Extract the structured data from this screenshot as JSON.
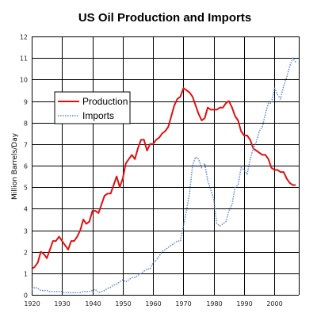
{
  "chart_data": {
    "type": "line",
    "title": "US Oil Production and Imports",
    "ylabel": "Million Barrels/Day",
    "xlabel": "",
    "xlim": [
      1920,
      2008
    ],
    "ylim": [
      0,
      12
    ],
    "grid": true,
    "legend_placement": "upper-left",
    "x_ticks": [
      1920,
      1930,
      1940,
      1950,
      1960,
      1970,
      1980,
      1990,
      2000
    ],
    "x_tick_labels": [
      "1920",
      "1930",
      "1940",
      "1950",
      "1960",
      "1970",
      "1980",
      "1990",
      "2000"
    ],
    "y_ticks": [
      0,
      1,
      2,
      3,
      4,
      5,
      6,
      7,
      8,
      9,
      10,
      11,
      12
    ],
    "y_tick_labels": [
      "0",
      "1",
      "2",
      "3",
      "4",
      "5",
      "6",
      "7",
      "8",
      "9",
      "10",
      "11",
      "12"
    ],
    "series": [
      {
        "name": "Production",
        "color": "#dd1111",
        "style": "solid",
        "x": [
          1920,
          1921,
          1922,
          1923,
          1924,
          1925,
          1926,
          1927,
          1928,
          1929,
          1930,
          1931,
          1932,
          1933,
          1934,
          1935,
          1936,
          1937,
          1938,
          1939,
          1940,
          1941,
          1942,
          1943,
          1944,
          1945,
          1946,
          1947,
          1948,
          1949,
          1950,
          1951,
          1952,
          1953,
          1954,
          1955,
          1956,
          1957,
          1958,
          1959,
          1960,
          1961,
          1962,
          1963,
          1964,
          1965,
          1966,
          1967,
          1968,
          1969,
          1970,
          1971,
          1972,
          1973,
          1974,
          1975,
          1976,
          1977,
          1978,
          1979,
          1980,
          1981,
          1982,
          1983,
          1984,
          1985,
          1986,
          1987,
          1988,
          1989,
          1990,
          1991,
          1992,
          1993,
          1994,
          1995,
          1996,
          1997,
          1998,
          1999,
          2000,
          2001,
          2002,
          2003,
          2004,
          2005,
          2006,
          2007
        ],
        "y": [
          1.2,
          1.3,
          1.5,
          2.0,
          1.9,
          1.7,
          2.1,
          2.5,
          2.5,
          2.7,
          2.5,
          2.3,
          2.1,
          2.5,
          2.5,
          2.7,
          3.0,
          3.5,
          3.3,
          3.4,
          3.9,
          3.9,
          3.8,
          4.2,
          4.6,
          4.7,
          4.7,
          5.1,
          5.5,
          5.0,
          5.4,
          6.1,
          6.3,
          6.5,
          6.3,
          6.8,
          7.2,
          7.2,
          6.7,
          7.0,
          7.0,
          7.2,
          7.3,
          7.5,
          7.6,
          7.8,
          8.3,
          8.8,
          9.1,
          9.2,
          9.6,
          9.5,
          9.4,
          9.2,
          8.8,
          8.4,
          8.1,
          8.2,
          8.7,
          8.6,
          8.6,
          8.6,
          8.7,
          8.7,
          8.9,
          9.0,
          8.7,
          8.3,
          8.1,
          7.6,
          7.4,
          7.4,
          7.2,
          6.8,
          6.7,
          6.6,
          6.5,
          6.5,
          6.3,
          5.9,
          5.8,
          5.8,
          5.7,
          5.7,
          5.4,
          5.2,
          5.1,
          5.1
        ]
      },
      {
        "name": "Imports",
        "color": "#5a88cc",
        "style": "dotted",
        "x": [
          1920,
          1921,
          1922,
          1923,
          1924,
          1925,
          1926,
          1927,
          1928,
          1929,
          1930,
          1931,
          1932,
          1933,
          1934,
          1935,
          1936,
          1937,
          1938,
          1939,
          1940,
          1941,
          1942,
          1943,
          1944,
          1945,
          1946,
          1947,
          1948,
          1949,
          1950,
          1951,
          1952,
          1953,
          1954,
          1955,
          1956,
          1957,
          1958,
          1959,
          1960,
          1961,
          1962,
          1963,
          1964,
          1965,
          1966,
          1967,
          1968,
          1969,
          1970,
          1971,
          1972,
          1973,
          1974,
          1975,
          1976,
          1977,
          1978,
          1979,
          1980,
          1981,
          1982,
          1983,
          1984,
          1985,
          1986,
          1987,
          1988,
          1989,
          1990,
          1991,
          1992,
          1993,
          1994,
          1995,
          1996,
          1997,
          1998,
          1999,
          2000,
          2001,
          2002,
          2003,
          2004,
          2005,
          2006,
          2007
        ],
        "y": [
          0.25,
          0.35,
          0.3,
          0.2,
          0.2,
          0.2,
          0.15,
          0.15,
          0.15,
          0.15,
          0.15,
          0.1,
          0.1,
          0.1,
          0.1,
          0.1,
          0.1,
          0.15,
          0.15,
          0.15,
          0.2,
          0.25,
          0.1,
          0.15,
          0.2,
          0.3,
          0.35,
          0.45,
          0.5,
          0.6,
          0.7,
          0.6,
          0.7,
          0.8,
          0.8,
          0.9,
          1.0,
          1.1,
          1.2,
          1.2,
          1.5,
          1.6,
          1.8,
          2.0,
          2.1,
          2.2,
          2.3,
          2.4,
          2.5,
          2.5,
          3.2,
          3.9,
          4.7,
          6.0,
          6.4,
          6.3,
          5.9,
          6.1,
          5.3,
          4.9,
          4.4,
          3.3,
          3.2,
          3.3,
          3.4,
          3.9,
          4.2,
          5.0,
          5.1,
          5.9,
          5.8,
          5.6,
          6.3,
          6.8,
          7.1,
          7.6,
          7.8,
          8.4,
          8.9,
          8.9,
          9.6,
          9.3,
          9.1,
          9.7,
          10.1,
          10.6,
          11.0,
          10.8
        ]
      }
    ]
  }
}
